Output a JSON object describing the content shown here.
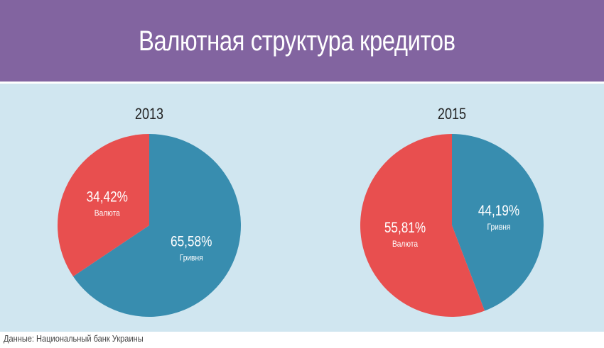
{
  "header": {
    "title": "Валютная структура кредитов"
  },
  "footer": {
    "source": "Данные: Национальный банк Украины"
  },
  "colors": {
    "header": "#8264a0",
    "panel": "#d0e6f0",
    "currency": "#e84f4f",
    "hryvnia": "#388daf"
  },
  "chart_data": [
    {
      "type": "pie",
      "title": "2013",
      "slices": [
        {
          "label": "Гривня",
          "value": 65.58,
          "display": "65,58%",
          "color": "#388daf"
        },
        {
          "label": "Валюта",
          "value": 34.42,
          "display": "34,42%",
          "color": "#e84f4f"
        }
      ]
    },
    {
      "type": "pie",
      "title": "2015",
      "slices": [
        {
          "label": "Гривня",
          "value": 44.19,
          "display": "44,19%",
          "color": "#388daf"
        },
        {
          "label": "Валюта",
          "value": 55.81,
          "display": "55,81%",
          "color": "#e84f4f"
        }
      ]
    }
  ]
}
